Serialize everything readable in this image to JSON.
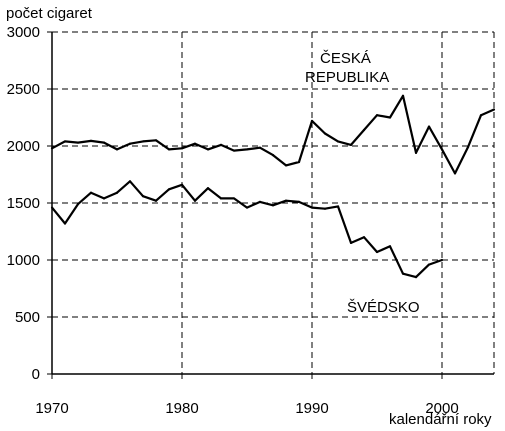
{
  "chart_data": {
    "type": "line",
    "ylabel": "počet cigaret",
    "xlabel": "kalendářní roky",
    "xlim": [
      1970,
      2004
    ],
    "ylim": [
      0,
      3000
    ],
    "x_ticks": [
      1970,
      1980,
      1990,
      2000
    ],
    "y_ticks": [
      0,
      500,
      1000,
      1500,
      2000,
      2500,
      3000
    ],
    "grid": {
      "horizontal": "dashed",
      "vertical": "dashed"
    },
    "colors": {
      "line": "#000000",
      "grid": "#000000",
      "background": "#ffffff"
    },
    "series": [
      {
        "name": "ČESKÁ REPUBLIKA",
        "x": [
          1970,
          1971,
          1972,
          1973,
          1974,
          1975,
          1976,
          1977,
          1978,
          1979,
          1980,
          1981,
          1982,
          1983,
          1984,
          1985,
          1986,
          1987,
          1988,
          1989,
          1990,
          1991,
          1992,
          1993,
          1994,
          1995,
          1996,
          1997,
          1998,
          1999,
          2000,
          2001,
          2002,
          2003,
          2004
        ],
        "y": [
          1980,
          2040,
          2030,
          2045,
          2030,
          1970,
          2020,
          2040,
          2050,
          1970,
          1980,
          2020,
          1970,
          2010,
          1960,
          1970,
          1985,
          1920,
          1830,
          1860,
          2220,
          2110,
          2040,
          2010,
          2140,
          2270,
          2250,
          2440,
          1940,
          2170,
          1970,
          1760,
          1990,
          2270,
          2320
        ]
      },
      {
        "name": "ŠVÉDSKO",
        "x": [
          1970,
          1971,
          1972,
          1973,
          1974,
          1975,
          1976,
          1977,
          1978,
          1979,
          1980,
          1981,
          1982,
          1983,
          1984,
          1985,
          1986,
          1987,
          1988,
          1989,
          1990,
          1991,
          1992,
          1993,
          1994,
          1995,
          1996,
          1997,
          1998,
          1999,
          2000
        ],
        "y": [
          1460,
          1320,
          1490,
          1590,
          1540,
          1590,
          1690,
          1560,
          1520,
          1620,
          1660,
          1520,
          1630,
          1540,
          1540,
          1460,
          1510,
          1480,
          1520,
          1510,
          1460,
          1450,
          1470,
          1150,
          1200,
          1070,
          1120,
          880,
          850,
          960,
          1000
        ]
      }
    ],
    "annotations": [
      {
        "series": 0,
        "lines": [
          "ČESKÁ",
          "REPUBLIKA"
        ]
      },
      {
        "series": 1,
        "lines": [
          "ŠVÉDSKO"
        ]
      }
    ]
  }
}
